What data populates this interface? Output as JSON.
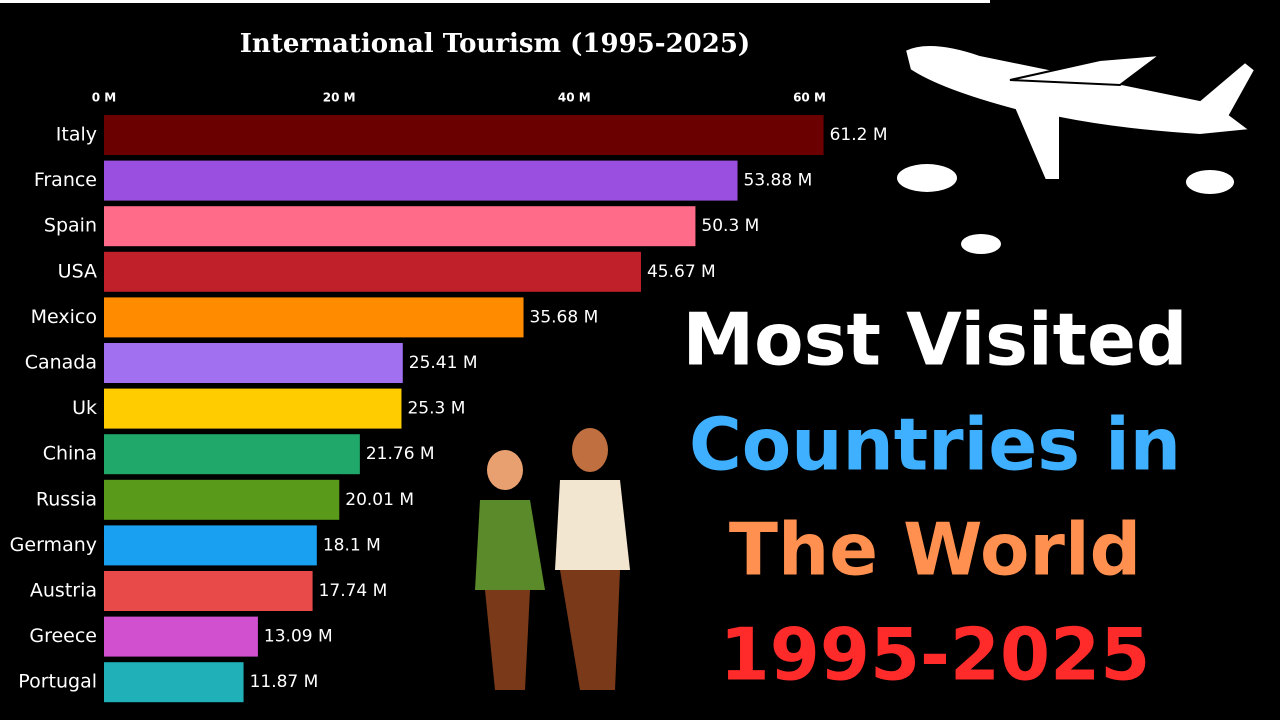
{
  "chart_data": {
    "type": "bar",
    "orientation": "horizontal",
    "title": "International Tourism (1995-2025)",
    "categories": [
      "Italy",
      "France",
      "Spain",
      "USA",
      "Mexico",
      "Canada",
      "Uk",
      "China",
      "Russia",
      "Germany",
      "Austria",
      "Greece",
      "Portugal"
    ],
    "values": [
      61.2,
      53.88,
      50.3,
      45.67,
      35.68,
      25.41,
      25.3,
      21.76,
      20.01,
      18.1,
      17.74,
      13.09,
      11.87
    ],
    "value_labels": [
      "61.2 M",
      "53.88 M",
      "50.3 M",
      "45.67 M",
      "35.68 M",
      "25.41 M",
      "25.3 M",
      "21.76 M",
      "20.01 M",
      "18.1 M",
      "17.74 M",
      "13.09 M",
      "11.87 M"
    ],
    "colors": [
      "#6b0000",
      "#9b4fe0",
      "#ff6b88",
      "#c0202a",
      "#ff8c00",
      "#a070f0",
      "#ffcc00",
      "#1fa86a",
      "#5a9a1a",
      "#1aa0f0",
      "#e84a4a",
      "#d050d0",
      "#20b0b8"
    ],
    "xlim": [
      0,
      62
    ],
    "xticks": [
      {
        "value": 0,
        "label": "0 M"
      },
      {
        "value": 20,
        "label": "20 M"
      },
      {
        "value": 40,
        "label": "40 M"
      },
      {
        "value": 60,
        "label": "60 M"
      }
    ],
    "annotations": [
      {
        "text": "Most Visited",
        "color": "#ffffff"
      },
      {
        "text": "Countries in",
        "color": "#3fb0ff"
      },
      {
        "text": "The World",
        "color": "#ff9050"
      },
      {
        "text": "1995-2025",
        "color": "#ff2a2a"
      }
    ]
  }
}
